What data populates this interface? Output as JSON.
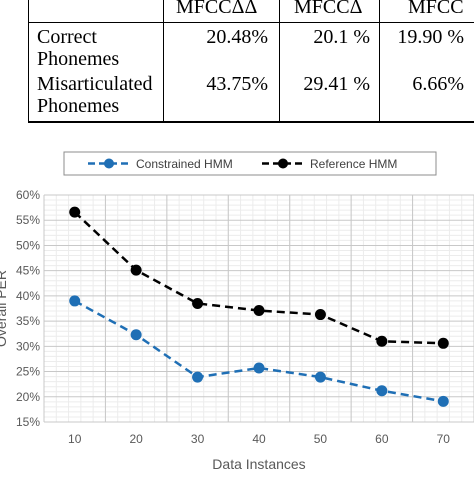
{
  "table": {
    "headers": [
      "",
      "MFCCΔΔ",
      "MFCCΔ",
      "MFCC"
    ],
    "rows": [
      {
        "label": "Correct\nPhonemes",
        "values": [
          "20.48%",
          "20.1 %",
          "19.90 %"
        ]
      },
      {
        "label": "Misarticulated\nPhonemes",
        "values": [
          "43.75%",
          "29.41 %",
          "6.66%"
        ]
      }
    ]
  },
  "chart_data": {
    "type": "line",
    "x": [
      10,
      20,
      30,
      40,
      50,
      60,
      70
    ],
    "series": [
      {
        "name": "Constrained HMM",
        "color": "#1f6fb5",
        "values": [
          39,
          32.3,
          23.9,
          25.7,
          23.9,
          21.2,
          19.1
        ]
      },
      {
        "name": "Reference HMM",
        "color": "#000000",
        "values": [
          56.6,
          45.1,
          38.5,
          37.1,
          36.3,
          31.0,
          30.6
        ]
      }
    ],
    "xlabel": "Data Instances",
    "ylabel": "Overall PER",
    "ylim": [
      15,
      60
    ],
    "yticks": [
      "60%",
      "55%",
      "50%",
      "45%",
      "40%",
      "35%",
      "30%",
      "25%",
      "20%",
      "15%"
    ],
    "xticks": [
      "10",
      "20",
      "30",
      "40",
      "50",
      "60",
      "70"
    ],
    "grid": true,
    "legend": "top"
  }
}
